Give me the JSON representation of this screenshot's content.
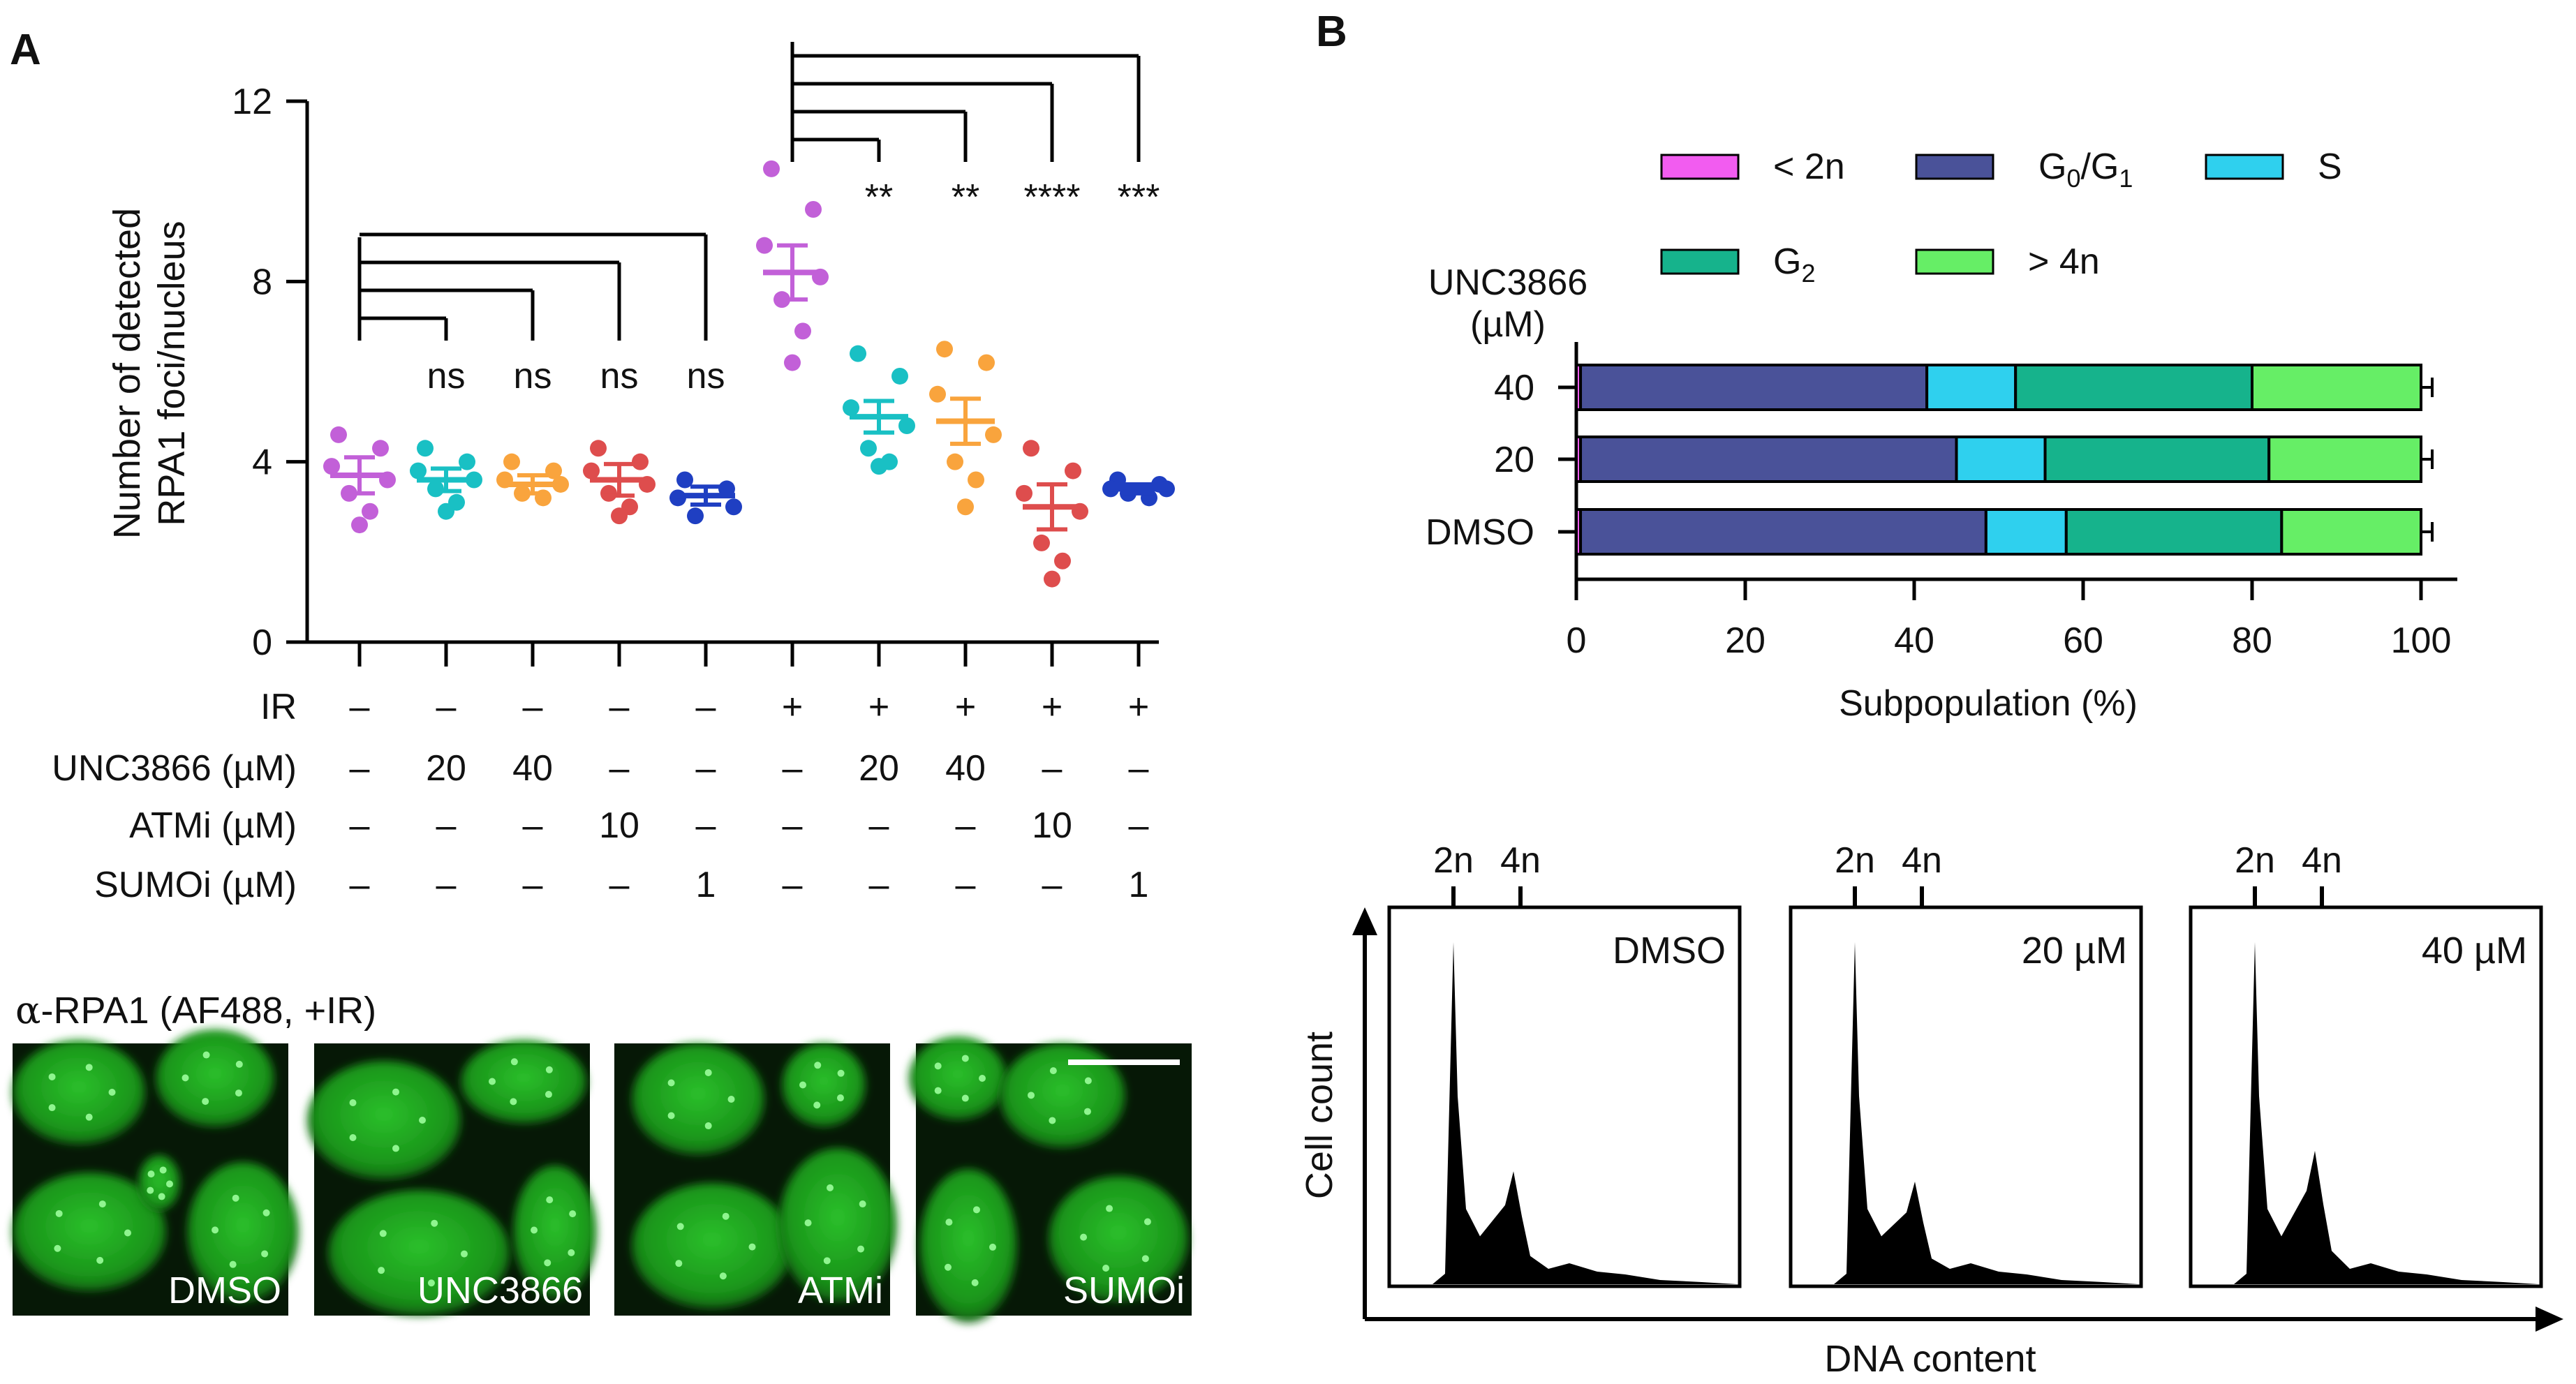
{
  "panel_labels": {
    "a": "A",
    "b": "B"
  },
  "colors": {
    "conditions": [
      "#c260d8",
      "#19c0c4",
      "#f9a43d",
      "#de4d4d",
      "#1f3fc2",
      "#c260d8",
      "#19c0c4",
      "#f9a43d",
      "#de4d4d",
      "#1f3fc2"
    ],
    "lt2n": "#f25cf0",
    "g0g1": "#4a5299",
    "s": "#2fd0ee",
    "g2": "#16b38c",
    "gt4n": "#66ee66",
    "micro_bg": "#061806",
    "micro_cell": "#1fa31f"
  },
  "chart_data": [
    {
      "type": "scatter",
      "panel": "A",
      "ylabel_line1": "Number of detected",
      "ylabel_line2": "RPA1 foci/nucleus",
      "ylim": [
        0,
        12
      ],
      "yticks": [
        "0",
        "4",
        "8",
        "12"
      ],
      "condition_rows": [
        {
          "label": "IR",
          "values": [
            "–",
            "–",
            "–",
            "–",
            "–",
            "+",
            "+",
            "+",
            "+",
            "+"
          ]
        },
        {
          "label": "UNC3866 (µM)",
          "values": [
            "–",
            "20",
            "40",
            "–",
            "–",
            "–",
            "20",
            "40",
            "–",
            "–"
          ]
        },
        {
          "label": "ATMi (µM)",
          "values": [
            "–",
            "–",
            "–",
            "10",
            "–",
            "–",
            "–",
            "–",
            "10",
            "–"
          ]
        },
        {
          "label": "SUMOi (µM)",
          "values": [
            "–",
            "–",
            "–",
            "–",
            "1",
            "–",
            "–",
            "–",
            "–",
            "1"
          ]
        }
      ],
      "groups": [
        {
          "mean": 3.7,
          "sem": 0.4,
          "points": [
            4.6,
            4.3,
            3.9,
            3.6,
            3.3,
            2.9,
            2.6
          ]
        },
        {
          "mean": 3.6,
          "sem": 0.25,
          "points": [
            4.3,
            4.0,
            3.8,
            3.6,
            3.4,
            3.1,
            2.9
          ]
        },
        {
          "mean": 3.5,
          "sem": 0.2,
          "points": [
            4.0,
            3.8,
            3.6,
            3.5,
            3.3,
            3.2
          ]
        },
        {
          "mean": 3.6,
          "sem": 0.35,
          "points": [
            4.3,
            4.0,
            3.8,
            3.5,
            3.3,
            3.0,
            2.8
          ]
        },
        {
          "mean": 3.25,
          "sem": 0.2,
          "points": [
            3.6,
            3.4,
            3.2,
            3.0,
            2.8
          ]
        },
        {
          "mean": 8.2,
          "sem": 0.6,
          "points": [
            10.5,
            9.6,
            8.8,
            8.1,
            7.6,
            6.9,
            6.2
          ]
        },
        {
          "mean": 5.0,
          "sem": 0.35,
          "points": [
            6.4,
            5.9,
            5.2,
            4.8,
            4.3,
            4.0,
            3.9
          ]
        },
        {
          "mean": 4.9,
          "sem": 0.5,
          "points": [
            6.5,
            6.2,
            5.5,
            4.6,
            4.0,
            3.6,
            3.0
          ]
        },
        {
          "mean": 3.0,
          "sem": 0.5,
          "points": [
            4.3,
            3.8,
            3.3,
            2.9,
            2.2,
            1.8,
            1.4
          ]
        },
        {
          "mean": 3.4,
          "sem": 0.1,
          "points": [
            3.6,
            3.5,
            3.4,
            3.4,
            3.3,
            3.2
          ]
        }
      ],
      "comparisons_left": [
        {
          "target": 2,
          "label": "ns"
        },
        {
          "target": 3,
          "label": "ns"
        },
        {
          "target": 4,
          "label": "ns"
        },
        {
          "target": 5,
          "label": "ns"
        }
      ],
      "comparisons_right": [
        {
          "target": 7,
          "label": "**"
        },
        {
          "target": 8,
          "label": "**"
        },
        {
          "target": 9,
          "label": "****"
        },
        {
          "target": 10,
          "label": "***"
        }
      ]
    },
    {
      "type": "bar",
      "orientation": "horizontal-stacked",
      "panel": "B",
      "xlabel": "Subpopulation (%)",
      "ylabel_line1": "UNC3866",
      "ylabel_line2": "(µM)",
      "xlim": [
        0,
        100
      ],
      "xticks": [
        "0",
        "20",
        "40",
        "60",
        "80",
        "100"
      ],
      "legend": {
        "lt2n": "< 2n",
        "g0g1_main": "G",
        "g0g1_sub1": "0",
        "g0g1_mid": "/G",
        "g0g1_sub2": "1",
        "s": "S",
        "g2_main": "G",
        "g2_sub": "2",
        "gt4n": "> 4n"
      },
      "categories": [
        "40",
        "20",
        "DMSO"
      ],
      "series": [
        {
          "name": "< 2n",
          "values": [
            0.5,
            0.5,
            0.5
          ]
        },
        {
          "name": "G0/G1",
          "values": [
            41,
            44.5,
            48
          ]
        },
        {
          "name": "S",
          "values": [
            10.5,
            10.5,
            9.5
          ]
        },
        {
          "name": "G2",
          "values": [
            28,
            26.5,
            25.5
          ]
        },
        {
          "name": "> 4n",
          "values": [
            20,
            18,
            16.5
          ]
        }
      ]
    },
    {
      "type": "area",
      "panel": "B-histograms",
      "xlabel": "DNA content",
      "ylabel": "Cell count",
      "marker_2n": "2n",
      "marker_4n": "4n",
      "panels": [
        {
          "label": "DMSO",
          "g1_peak": 1.0,
          "g2_peak": 0.33
        },
        {
          "label": "20 µM",
          "g1_peak": 1.0,
          "g2_peak": 0.3
        },
        {
          "label": "40 µM",
          "g1_peak": 1.0,
          "g2_peak": 0.39
        }
      ]
    }
  ],
  "micrographs": {
    "title_prefix": "α",
    "title_rest": "-RPA1 (AF488, +IR)",
    "panels": [
      "DMSO",
      "UNC3866",
      "ATMi",
      "SUMOi"
    ]
  }
}
